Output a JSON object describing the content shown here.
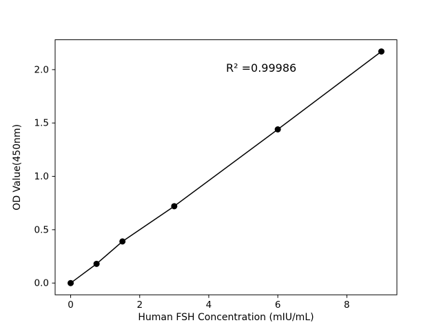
{
  "chart_data": {
    "type": "scatter",
    "title": "",
    "xlabel": "Human FSH Concentration (mIU/mL)",
    "ylabel": "OD Value(450nm)",
    "x": [
      0,
      0.75,
      1.5,
      3,
      6,
      9
    ],
    "y": [
      0.0,
      0.18,
      0.39,
      0.72,
      1.44,
      2.17
    ],
    "xlim": [
      -0.45,
      9.45
    ],
    "ylim": [
      -0.11,
      2.28
    ],
    "xticks": [
      0,
      2,
      4,
      6,
      8
    ],
    "xtick_labels": [
      "0",
      "2",
      "4",
      "6",
      "8"
    ],
    "yticks": [
      0.0,
      0.5,
      1.0,
      1.5,
      2.0
    ],
    "ytick_labels": [
      "0.0",
      "0.5",
      "1.0",
      "1.5",
      "2.0"
    ],
    "annotation": {
      "text": "R² =0.99986",
      "x": 4.5,
      "y": 1.98
    },
    "line": {
      "show": true,
      "color": "#000000",
      "width": 1.5
    },
    "marker": {
      "shape": "circle",
      "color": "#000000",
      "radius": 4.5
    },
    "grid": false,
    "legend": "none",
    "background": "#ffffff",
    "frame_color": "#000000"
  }
}
